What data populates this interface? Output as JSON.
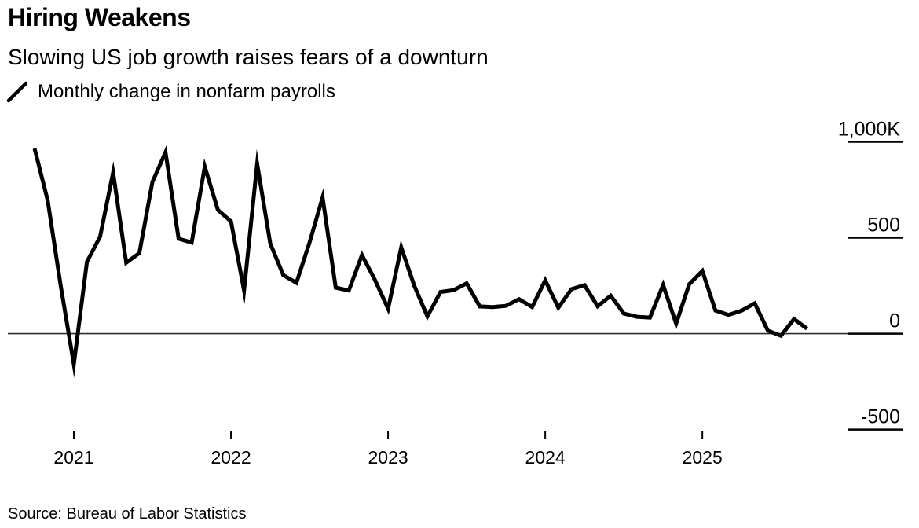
{
  "header": {
    "title": "Hiring Weakens",
    "subtitle": "Slowing US job growth raises fears of a downturn"
  },
  "legend": {
    "label": "Monthly change in nonfarm payrolls"
  },
  "source": {
    "text": "Source: Bureau of Labor Statistics"
  },
  "colors": {
    "line": "#000000",
    "zero_line": "#2e2e2e",
    "tick": "#000000",
    "text": "#000000",
    "background": "#ffffff"
  },
  "chart_data": {
    "type": "line",
    "title": "Hiring Weakens",
    "subtitle": "Slowing US job growth raises fears of a downturn",
    "unit": "thousands of jobs (K)",
    "grid": false,
    "legend_position": "top-left",
    "source": "Source: Bureau of Labor Statistics",
    "x": [
      "2020-09",
      "2020-10",
      "2020-11",
      "2020-12",
      "2021-01",
      "2021-02",
      "2021-03",
      "2021-04",
      "2021-05",
      "2021-06",
      "2021-07",
      "2021-08",
      "2021-09",
      "2021-10",
      "2021-11",
      "2021-12",
      "2022-01",
      "2022-02",
      "2022-03",
      "2022-04",
      "2022-05",
      "2022-06",
      "2022-07",
      "2022-08",
      "2022-09",
      "2022-10",
      "2022-11",
      "2022-12",
      "2023-01",
      "2023-02",
      "2023-03",
      "2023-04",
      "2023-05",
      "2023-06",
      "2023-07",
      "2023-08",
      "2023-09",
      "2023-10",
      "2023-11",
      "2023-12",
      "2024-01",
      "2024-02",
      "2024-03",
      "2024-04",
      "2024-05",
      "2024-06",
      "2024-07",
      "2024-08",
      "2024-09",
      "2024-10",
      "2024-11",
      "2024-12",
      "2025-01",
      "2025-02",
      "2025-03",
      "2025-04",
      "2025-05",
      "2025-06",
      "2025-07",
      "2025-08"
    ],
    "series": [
      {
        "name": "Monthly change in nonfarm payrolls",
        "values": [
          965,
          695,
          250,
          -160,
          375,
          505,
          840,
          370,
          420,
          790,
          945,
          495,
          475,
          870,
          645,
          585,
          225,
          885,
          470,
          305,
          265,
          475,
          710,
          240,
          225,
          410,
          280,
          130,
          450,
          250,
          90,
          217,
          227,
          262,
          142,
          139,
          145,
          180,
          139,
          278,
          135,
          232,
          253,
          143,
          198,
          105,
          88,
          84,
          254,
          52,
          258,
          327,
          121,
          98,
          120,
          158,
          16,
          -11,
          76,
          26
        ]
      }
    ],
    "y_axis": {
      "range": [
        -500,
        1000
      ],
      "ticks": [
        {
          "value": 1000,
          "label": "1,000K"
        },
        {
          "value": 500,
          "label": "500"
        },
        {
          "value": 0,
          "label": "0"
        },
        {
          "value": -500,
          "label": "-500"
        }
      ]
    },
    "x_axis": {
      "ticks": [
        {
          "label": "2021"
        },
        {
          "label": "2022"
        },
        {
          "label": "2023"
        },
        {
          "label": "2024"
        },
        {
          "label": "2025"
        }
      ]
    }
  }
}
